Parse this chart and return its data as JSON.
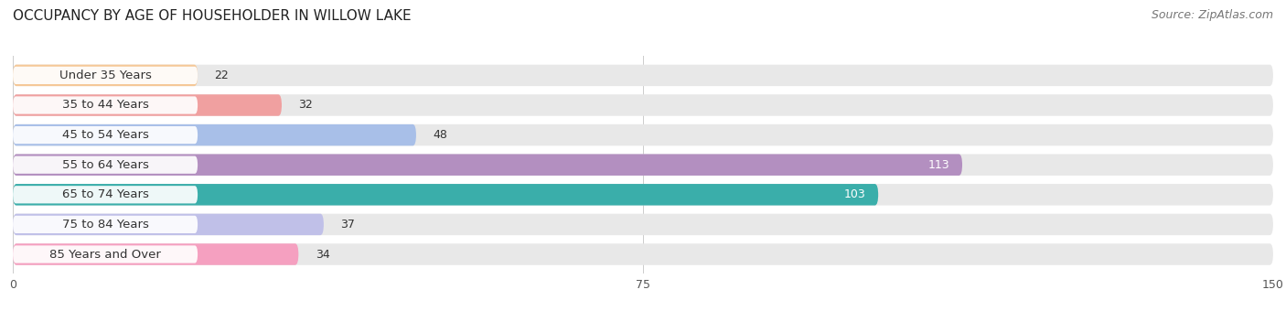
{
  "title": "OCCUPANCY BY AGE OF HOUSEHOLDER IN WILLOW LAKE",
  "source": "Source: ZipAtlas.com",
  "categories": [
    "Under 35 Years",
    "35 to 44 Years",
    "45 to 54 Years",
    "55 to 64 Years",
    "65 to 74 Years",
    "75 to 84 Years",
    "85 Years and Over"
  ],
  "values": [
    22,
    32,
    48,
    113,
    103,
    37,
    34
  ],
  "bar_colors": [
    "#f5c897",
    "#f0a0a0",
    "#a8bfe8",
    "#b38fc0",
    "#3aaeaa",
    "#c0c0e8",
    "#f5a0c0"
  ],
  "bar_bg_color": "#e8e8e8",
  "xlim": [
    0,
    150
  ],
  "xticks": [
    0,
    75,
    150
  ],
  "label_inside_threshold": 75,
  "title_fontsize": 11,
  "source_fontsize": 9,
  "bar_label_fontsize": 9,
  "category_fontsize": 9.5,
  "bar_height": 0.72,
  "figsize": [
    14.06,
    3.4
  ],
  "dpi": 100
}
